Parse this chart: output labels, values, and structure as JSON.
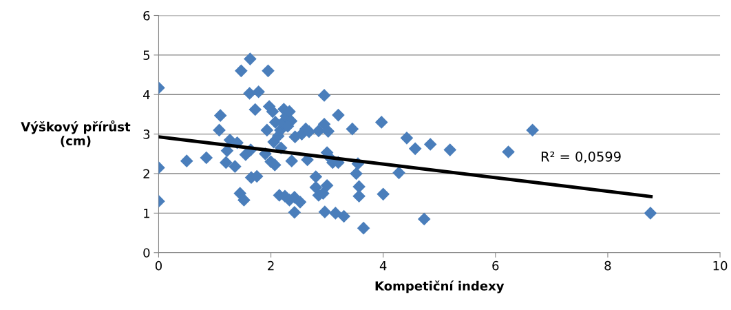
{
  "chart_data": {
    "type": "scatter",
    "xlabel": "Kompetiční indexy",
    "ylabel": "Výškový přírůst\n(cm)",
    "xlim": [
      0,
      10
    ],
    "ylim": [
      0,
      6
    ],
    "xticks": [
      0,
      2,
      4,
      6,
      8,
      10
    ],
    "yticks": [
      0,
      1,
      2,
      3,
      4,
      5,
      6
    ],
    "grid": "y",
    "legend": false,
    "marker": "diamond",
    "annotations": [
      "R² = 0,0599"
    ],
    "series": [
      {
        "color": "#4a7ebb",
        "x": [
          0,
          0,
          0,
          0.5,
          0.85,
          1.1,
          1.08,
          1.22,
          1.2,
          1.27,
          1.36,
          1.4,
          1.45,
          1.52,
          1.47,
          1.55,
          1.64,
          1.62,
          1.63,
          1.72,
          1.78,
          1.65,
          1.75,
          1.9,
          1.93,
          1.97,
          1.95,
          2.0,
          2.07,
          2.05,
          2.08,
          2.03,
          2.13,
          2.17,
          2.2,
          2.23,
          2.27,
          2.33,
          2.36,
          2.3,
          2.18,
          2.15,
          2.25,
          2.33,
          2.42,
          2.52,
          2.42,
          2.37,
          2.43,
          2.55,
          2.62,
          2.68,
          2.85,
          2.65,
          2.8,
          2.8,
          2.85,
          2.93,
          3.0,
          2.95,
          2.95,
          3.02,
          3.0,
          3.05,
          3.1,
          3.2,
          3.2,
          2.96,
          3.15,
          3.3,
          3.65,
          3.45,
          3.55,
          3.52,
          3.57,
          3.57,
          3.97,
          4.0,
          4.28,
          4.42,
          4.57,
          4.84,
          4.73,
          5.19,
          6.23,
          6.66,
          8.76
        ],
        "values": [
          4.17,
          2.15,
          1.3,
          2.32,
          2.4,
          3.47,
          3.1,
          2.58,
          2.28,
          2.85,
          2.18,
          2.78,
          1.5,
          1.33,
          4.6,
          2.48,
          2.6,
          4.03,
          4.9,
          3.62,
          4.07,
          1.9,
          1.93,
          2.5,
          3.1,
          3.7,
          4.6,
          2.3,
          2.22,
          2.8,
          3.3,
          3.57,
          2.95,
          3.1,
          3.28,
          3.63,
          3.45,
          3.57,
          3.33,
          3.2,
          2.65,
          1.45,
          1.43,
          1.33,
          1.4,
          1.28,
          1.02,
          2.32,
          2.93,
          3.0,
          3.13,
          3.06,
          3.08,
          2.35,
          1.92,
          1.65,
          1.45,
          1.5,
          1.7,
          3.98,
          3.25,
          3.07,
          2.53,
          2.4,
          2.28,
          2.28,
          3.48,
          1.03,
          1.0,
          0.92,
          0.62,
          3.13,
          2.25,
          2.0,
          1.67,
          1.43,
          3.3,
          1.48,
          2.02,
          2.9,
          2.63,
          2.74,
          0.85,
          2.6,
          2.55,
          3.1,
          1.0
        ]
      },
      {
        "type": "line",
        "color": "#000000",
        "marker": "none",
        "x": [
          0,
          8.77
        ],
        "values": [
          2.93,
          1.42
        ]
      }
    ]
  }
}
